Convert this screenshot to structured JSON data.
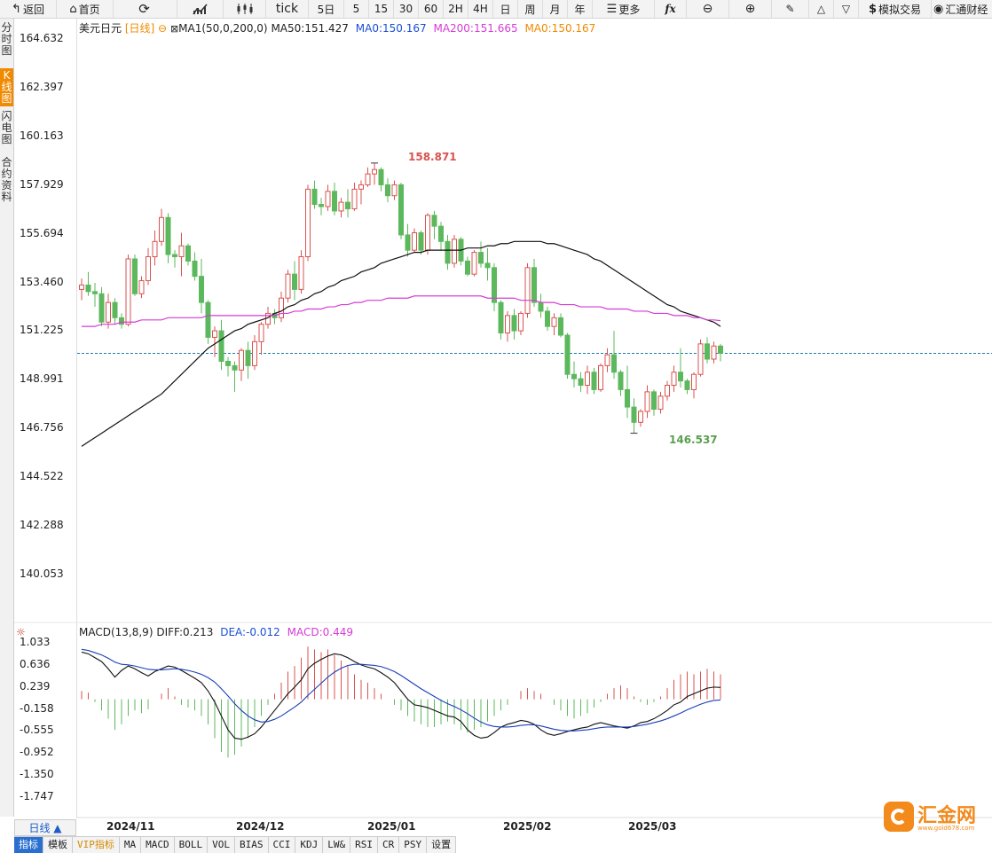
{
  "toolbar": {
    "back": "返回",
    "home": "首页",
    "refresh_icon": "refresh-icon",
    "tick": "tick",
    "periods": [
      "5日",
      "5",
      "15",
      "30",
      "60",
      "2H",
      "4H",
      "日",
      "周",
      "月",
      "年"
    ],
    "more": "更多",
    "fx": "fx",
    "sim_trade": "模拟交易",
    "brand_right": "汇通财经"
  },
  "sidebar": {
    "tabs": [
      {
        "label": "分时图",
        "active": false
      },
      {
        "label": "K线图",
        "active": true
      },
      {
        "label": "闪电图",
        "active": false
      },
      {
        "label": "合约资料",
        "active": false
      }
    ]
  },
  "main_legend": {
    "symbol": "美元日元",
    "period": "[日线]",
    "ma_name": "MA1(50,0,200,0)",
    "ma50": "MA50:151.427",
    "ma0a": "MA0:150.167",
    "ma200": "MA200:151.665",
    "ma0b": "MA0:150.167"
  },
  "main_axis": [
    "164.632",
    "162.397",
    "160.163",
    "157.929",
    "155.694",
    "153.460",
    "151.225",
    "148.991",
    "146.756",
    "144.522",
    "142.288",
    "140.053"
  ],
  "annotations": {
    "high": "158.871",
    "low": "146.537"
  },
  "macd_legend": {
    "name": "MACD(13,8,9)",
    "diff": "DIFF:0.213",
    "dea": "DEA:-0.012",
    "macd": "MACD:0.449"
  },
  "macd_axis": [
    "1.033",
    "0.636",
    "0.239",
    "-0.158",
    "-0.555",
    "-0.952",
    "-1.350",
    "-1.747"
  ],
  "x_axis": [
    "2024/11",
    "2024/12",
    "2025/01",
    "2025/02",
    "2025/03"
  ],
  "period_button": "日线 ▲",
  "bottom_tabs": [
    "指标",
    "模板",
    "VIP指标",
    "MA",
    "MACD",
    "BOLL",
    "VOL",
    "BIAS",
    "CCI",
    "KDJ",
    "LW&",
    "RSI",
    "CR",
    "PSY",
    "设置"
  ],
  "logo": {
    "text": "汇金网",
    "sub": "www.gold678.com"
  },
  "colors": {
    "up": "#d9534f",
    "down": "#5cb85c",
    "ma50": "#111111",
    "ma200": "#d63cd6",
    "current": "#1f7aa8",
    "accent": "#f08a00"
  },
  "chart_data": {
    "type": "candlestick",
    "y_range": [
      139.0,
      165.5
    ],
    "current_price": 150.167,
    "candles": [
      [
        153.1,
        153.6,
        152.6,
        153.3
      ],
      [
        153.3,
        153.9,
        152.8,
        153.0
      ],
      [
        153.0,
        153.4,
        152.3,
        152.9
      ],
      [
        152.9,
        153.2,
        151.4,
        151.6
      ],
      [
        151.6,
        152.9,
        151.3,
        152.5
      ],
      [
        152.5,
        152.7,
        151.5,
        151.8
      ],
      [
        151.8,
        152.0,
        151.3,
        151.5
      ],
      [
        151.5,
        154.7,
        151.4,
        154.5
      ],
      [
        154.5,
        154.7,
        152.8,
        152.9
      ],
      [
        152.9,
        153.7,
        152.7,
        153.5
      ],
      [
        153.5,
        155.0,
        153.3,
        154.6
      ],
      [
        154.6,
        155.8,
        154.2,
        155.3
      ],
      [
        155.3,
        156.8,
        155.1,
        156.4
      ],
      [
        156.4,
        156.6,
        154.3,
        154.7
      ],
      [
        154.7,
        154.9,
        154.1,
        154.6
      ],
      [
        154.6,
        155.7,
        153.7,
        155.1
      ],
      [
        155.1,
        155.2,
        154.2,
        154.4
      ],
      [
        154.4,
        154.8,
        153.5,
        153.7
      ],
      [
        153.7,
        154.5,
        152.0,
        152.5
      ],
      [
        152.5,
        152.6,
        150.6,
        150.9
      ],
      [
        150.9,
        151.4,
        150.0,
        151.2
      ],
      [
        151.2,
        151.7,
        149.4,
        149.8
      ],
      [
        149.8,
        150.0,
        149.1,
        149.6
      ],
      [
        149.6,
        149.8,
        148.4,
        149.4
      ],
      [
        149.4,
        150.4,
        148.9,
        150.3
      ],
      [
        150.3,
        150.7,
        149.0,
        149.6
      ],
      [
        149.6,
        151.0,
        149.4,
        150.7
      ],
      [
        150.7,
        151.6,
        150.1,
        151.5
      ],
      [
        151.5,
        152.3,
        151.3,
        152.0
      ],
      [
        152.0,
        152.2,
        151.5,
        151.8
      ],
      [
        151.8,
        153.0,
        151.6,
        152.7
      ],
      [
        152.7,
        154.0,
        152.5,
        153.8
      ],
      [
        153.8,
        154.4,
        152.6,
        153.1
      ],
      [
        153.1,
        154.9,
        152.9,
        154.6
      ],
      [
        154.6,
        157.9,
        154.4,
        157.7
      ],
      [
        157.7,
        158.1,
        156.8,
        157.0
      ],
      [
        157.0,
        157.3,
        156.5,
        156.9
      ],
      [
        156.9,
        157.9,
        156.7,
        157.6
      ],
      [
        157.6,
        158.0,
        156.5,
        156.7
      ],
      [
        156.7,
        157.3,
        156.4,
        157.1
      ],
      [
        157.1,
        157.7,
        156.4,
        156.8
      ],
      [
        156.8,
        158.0,
        156.7,
        157.7
      ],
      [
        157.7,
        158.1,
        157.0,
        157.9
      ],
      [
        157.9,
        158.7,
        157.8,
        158.4
      ],
      [
        158.4,
        158.9,
        157.9,
        158.6
      ],
      [
        158.6,
        158.7,
        157.6,
        157.9
      ],
      [
        157.9,
        158.2,
        157.1,
        157.4
      ],
      [
        157.4,
        158.1,
        157.2,
        157.9
      ],
      [
        157.9,
        158.0,
        155.4,
        155.6
      ],
      [
        155.6,
        156.1,
        154.6,
        154.9
      ],
      [
        154.9,
        155.9,
        154.8,
        155.7
      ],
      [
        155.7,
        155.8,
        154.7,
        154.9
      ],
      [
        154.9,
        156.6,
        154.7,
        156.5
      ],
      [
        156.5,
        156.7,
        155.4,
        156.0
      ],
      [
        156.0,
        156.2,
        154.9,
        155.3
      ],
      [
        155.3,
        155.6,
        154.0,
        154.3
      ],
      [
        154.3,
        155.6,
        154.1,
        155.4
      ],
      [
        155.4,
        155.5,
        154.2,
        154.4
      ],
      [
        154.4,
        154.6,
        153.7,
        153.8
      ],
      [
        153.8,
        154.9,
        153.7,
        154.8
      ],
      [
        154.8,
        155.3,
        154.1,
        154.3
      ],
      [
        154.3,
        155.0,
        153.5,
        154.1
      ],
      [
        154.1,
        154.3,
        152.1,
        152.5
      ],
      [
        152.5,
        152.6,
        150.8,
        151.1
      ],
      [
        151.1,
        152.1,
        150.7,
        151.9
      ],
      [
        151.9,
        152.2,
        150.8,
        151.2
      ],
      [
        151.2,
        152.1,
        151.0,
        152.0
      ],
      [
        152.0,
        154.3,
        151.8,
        154.1
      ],
      [
        154.1,
        154.5,
        152.3,
        152.5
      ],
      [
        152.5,
        152.9,
        151.8,
        152.1
      ],
      [
        152.1,
        152.3,
        151.2,
        151.4
      ],
      [
        151.4,
        152.0,
        151.0,
        151.8
      ],
      [
        151.8,
        152.0,
        150.9,
        151.0
      ],
      [
        151.0,
        151.1,
        149.0,
        149.2
      ],
      [
        149.2,
        149.8,
        148.6,
        149.0
      ],
      [
        149.0,
        149.3,
        148.4,
        148.7
      ],
      [
        148.7,
        149.6,
        148.3,
        149.3
      ],
      [
        149.3,
        149.5,
        148.3,
        148.5
      ],
      [
        148.5,
        149.7,
        148.4,
        149.6
      ],
      [
        149.6,
        150.4,
        149.3,
        150.1
      ],
      [
        150.1,
        151.2,
        149.0,
        149.3
      ],
      [
        149.3,
        149.4,
        148.2,
        148.5
      ],
      [
        148.5,
        149.6,
        147.2,
        147.7
      ],
      [
        147.7,
        148.1,
        146.5,
        147.0
      ],
      [
        147.0,
        147.6,
        146.8,
        147.5
      ],
      [
        147.5,
        148.7,
        147.2,
        148.4
      ],
      [
        148.4,
        148.5,
        147.3,
        147.6
      ],
      [
        147.6,
        148.4,
        147.4,
        148.2
      ],
      [
        148.2,
        148.9,
        148.0,
        148.7
      ],
      [
        148.7,
        149.6,
        148.4,
        149.3
      ],
      [
        149.3,
        150.4,
        148.6,
        148.9
      ],
      [
        148.9,
        149.0,
        148.3,
        148.5
      ],
      [
        148.5,
        149.3,
        148.1,
        149.2
      ],
      [
        149.2,
        150.8,
        149.1,
        150.6
      ],
      [
        150.6,
        150.9,
        149.7,
        149.9
      ],
      [
        149.9,
        150.7,
        149.7,
        150.5
      ],
      [
        150.5,
        150.6,
        149.8,
        150.167
      ]
    ],
    "ma50": [
      145.9,
      146.1,
      146.3,
      146.5,
      146.7,
      146.9,
      147.1,
      147.3,
      147.5,
      147.7,
      147.9,
      148.1,
      148.3,
      148.6,
      148.9,
      149.2,
      149.5,
      149.8,
      150.1,
      150.4,
      150.6,
      150.8,
      151.0,
      151.2,
      151.3,
      151.5,
      151.6,
      151.7,
      151.8,
      152.0,
      152.1,
      152.3,
      152.4,
      152.6,
      152.7,
      152.9,
      153.0,
      153.2,
      153.3,
      153.5,
      153.6,
      153.7,
      153.9,
      154.0,
      154.1,
      154.3,
      154.4,
      154.5,
      154.6,
      154.7,
      154.8,
      154.8,
      154.9,
      154.9,
      154.9,
      154.9,
      154.9,
      154.9,
      155.0,
      155.0,
      155.0,
      155.1,
      155.1,
      155.2,
      155.2,
      155.3,
      155.3,
      155.3,
      155.3,
      155.3,
      155.2,
      155.2,
      155.1,
      155.0,
      154.9,
      154.8,
      154.7,
      154.5,
      154.4,
      154.2,
      154.0,
      153.8,
      153.6,
      153.4,
      153.2,
      153.0,
      152.8,
      152.6,
      152.4,
      152.3,
      152.1,
      152.0,
      151.9,
      151.8,
      151.7,
      151.6,
      151.4
    ],
    "ma200": [
      151.4,
      151.4,
      151.4,
      151.5,
      151.5,
      151.5,
      151.6,
      151.6,
      151.6,
      151.7,
      151.7,
      151.7,
      151.7,
      151.8,
      151.8,
      151.8,
      151.8,
      151.8,
      151.8,
      151.9,
      151.9,
      151.9,
      151.9,
      151.9,
      151.9,
      151.9,
      151.9,
      151.9,
      151.9,
      151.9,
      152.0,
      152.0,
      152.1,
      152.1,
      152.2,
      152.2,
      152.2,
      152.3,
      152.3,
      152.4,
      152.4,
      152.5,
      152.5,
      152.6,
      152.6,
      152.6,
      152.7,
      152.7,
      152.7,
      152.7,
      152.8,
      152.8,
      152.8,
      152.8,
      152.8,
      152.8,
      152.8,
      152.8,
      152.8,
      152.8,
      152.8,
      152.7,
      152.7,
      152.7,
      152.7,
      152.7,
      152.6,
      152.6,
      152.6,
      152.5,
      152.5,
      152.5,
      152.4,
      152.4,
      152.4,
      152.3,
      152.3,
      152.3,
      152.3,
      152.2,
      152.2,
      152.2,
      152.2,
      152.1,
      152.1,
      152.1,
      152.0,
      152.0,
      152.0,
      151.9,
      151.9,
      151.9,
      151.8,
      151.8,
      151.7,
      151.7,
      151.665
    ],
    "macd_y_range": [
      -1.95,
      1.25
    ],
    "macd_hist": [
      0.15,
      0.12,
      -0.05,
      -0.2,
      -0.35,
      -0.55,
      -0.45,
      -0.3,
      -0.2,
      -0.25,
      -0.18,
      0.0,
      0.1,
      0.2,
      0.05,
      -0.1,
      -0.15,
      -0.2,
      -0.3,
      -0.45,
      -0.7,
      -0.95,
      -1.05,
      -1.0,
      -0.85,
      -0.7,
      -0.5,
      -0.3,
      -0.1,
      0.1,
      0.3,
      0.5,
      0.6,
      0.75,
      0.95,
      0.9,
      0.85,
      0.9,
      0.8,
      0.7,
      0.6,
      0.45,
      0.35,
      0.3,
      0.2,
      0.1,
      0.0,
      -0.1,
      -0.2,
      -0.3,
      -0.4,
      -0.45,
      -0.5,
      -0.5,
      -0.45,
      -0.4,
      -0.45,
      -0.55,
      -0.6,
      -0.55,
      -0.5,
      -0.4,
      -0.3,
      -0.2,
      -0.1,
      0.0,
      0.15,
      0.2,
      0.15,
      0.1,
      0.0,
      -0.1,
      -0.2,
      -0.3,
      -0.35,
      -0.3,
      -0.25,
      -0.15,
      -0.05,
      0.1,
      0.2,
      0.25,
      0.2,
      0.05,
      -0.05,
      -0.1,
      -0.05,
      0.05,
      0.2,
      0.35,
      0.45,
      0.5,
      0.45,
      0.5,
      0.55,
      0.5,
      0.449
    ],
    "diff": [
      0.85,
      0.82,
      0.75,
      0.68,
      0.55,
      0.4,
      0.52,
      0.6,
      0.55,
      0.48,
      0.42,
      0.5,
      0.55,
      0.6,
      0.58,
      0.52,
      0.45,
      0.38,
      0.3,
      0.15,
      -0.05,
      -0.3,
      -0.55,
      -0.7,
      -0.72,
      -0.68,
      -0.62,
      -0.5,
      -0.35,
      -0.2,
      -0.05,
      0.1,
      0.22,
      0.35,
      0.55,
      0.65,
      0.72,
      0.78,
      0.82,
      0.8,
      0.75,
      0.68,
      0.62,
      0.58,
      0.55,
      0.48,
      0.4,
      0.3,
      0.15,
      0.0,
      -0.1,
      -0.12,
      -0.15,
      -0.2,
      -0.25,
      -0.3,
      -0.32,
      -0.4,
      -0.55,
      -0.65,
      -0.7,
      -0.68,
      -0.6,
      -0.5,
      -0.45,
      -0.42,
      -0.38,
      -0.4,
      -0.45,
      -0.55,
      -0.62,
      -0.65,
      -0.62,
      -0.58,
      -0.55,
      -0.52,
      -0.5,
      -0.45,
      -0.42,
      -0.45,
      -0.48,
      -0.5,
      -0.52,
      -0.48,
      -0.42,
      -0.4,
      -0.35,
      -0.28,
      -0.2,
      -0.1,
      -0.05,
      0.05,
      0.1,
      0.15,
      0.2,
      0.22,
      0.213
    ],
    "dea": [
      0.9,
      0.88,
      0.84,
      0.8,
      0.74,
      0.67,
      0.63,
      0.62,
      0.6,
      0.57,
      0.54,
      0.53,
      0.53,
      0.54,
      0.55,
      0.54,
      0.52,
      0.49,
      0.45,
      0.39,
      0.31,
      0.19,
      0.06,
      -0.08,
      -0.2,
      -0.3,
      -0.37,
      -0.41,
      -0.4,
      -0.36,
      -0.3,
      -0.22,
      -0.14,
      -0.05,
      0.07,
      0.18,
      0.29,
      0.4,
      0.49,
      0.56,
      0.61,
      0.63,
      0.63,
      0.62,
      0.61,
      0.59,
      0.55,
      0.5,
      0.43,
      0.35,
      0.27,
      0.19,
      0.12,
      0.05,
      -0.02,
      -0.08,
      -0.13,
      -0.19,
      -0.26,
      -0.34,
      -0.41,
      -0.46,
      -0.49,
      -0.5,
      -0.5,
      -0.49,
      -0.47,
      -0.46,
      -0.46,
      -0.48,
      -0.51,
      -0.54,
      -0.56,
      -0.57,
      -0.57,
      -0.56,
      -0.55,
      -0.53,
      -0.51,
      -0.5,
      -0.5,
      -0.5,
      -0.5,
      -0.49,
      -0.47,
      -0.45,
      -0.42,
      -0.39,
      -0.35,
      -0.3,
      -0.25,
      -0.19,
      -0.14,
      -0.09,
      -0.05,
      -0.02,
      -0.012
    ]
  }
}
